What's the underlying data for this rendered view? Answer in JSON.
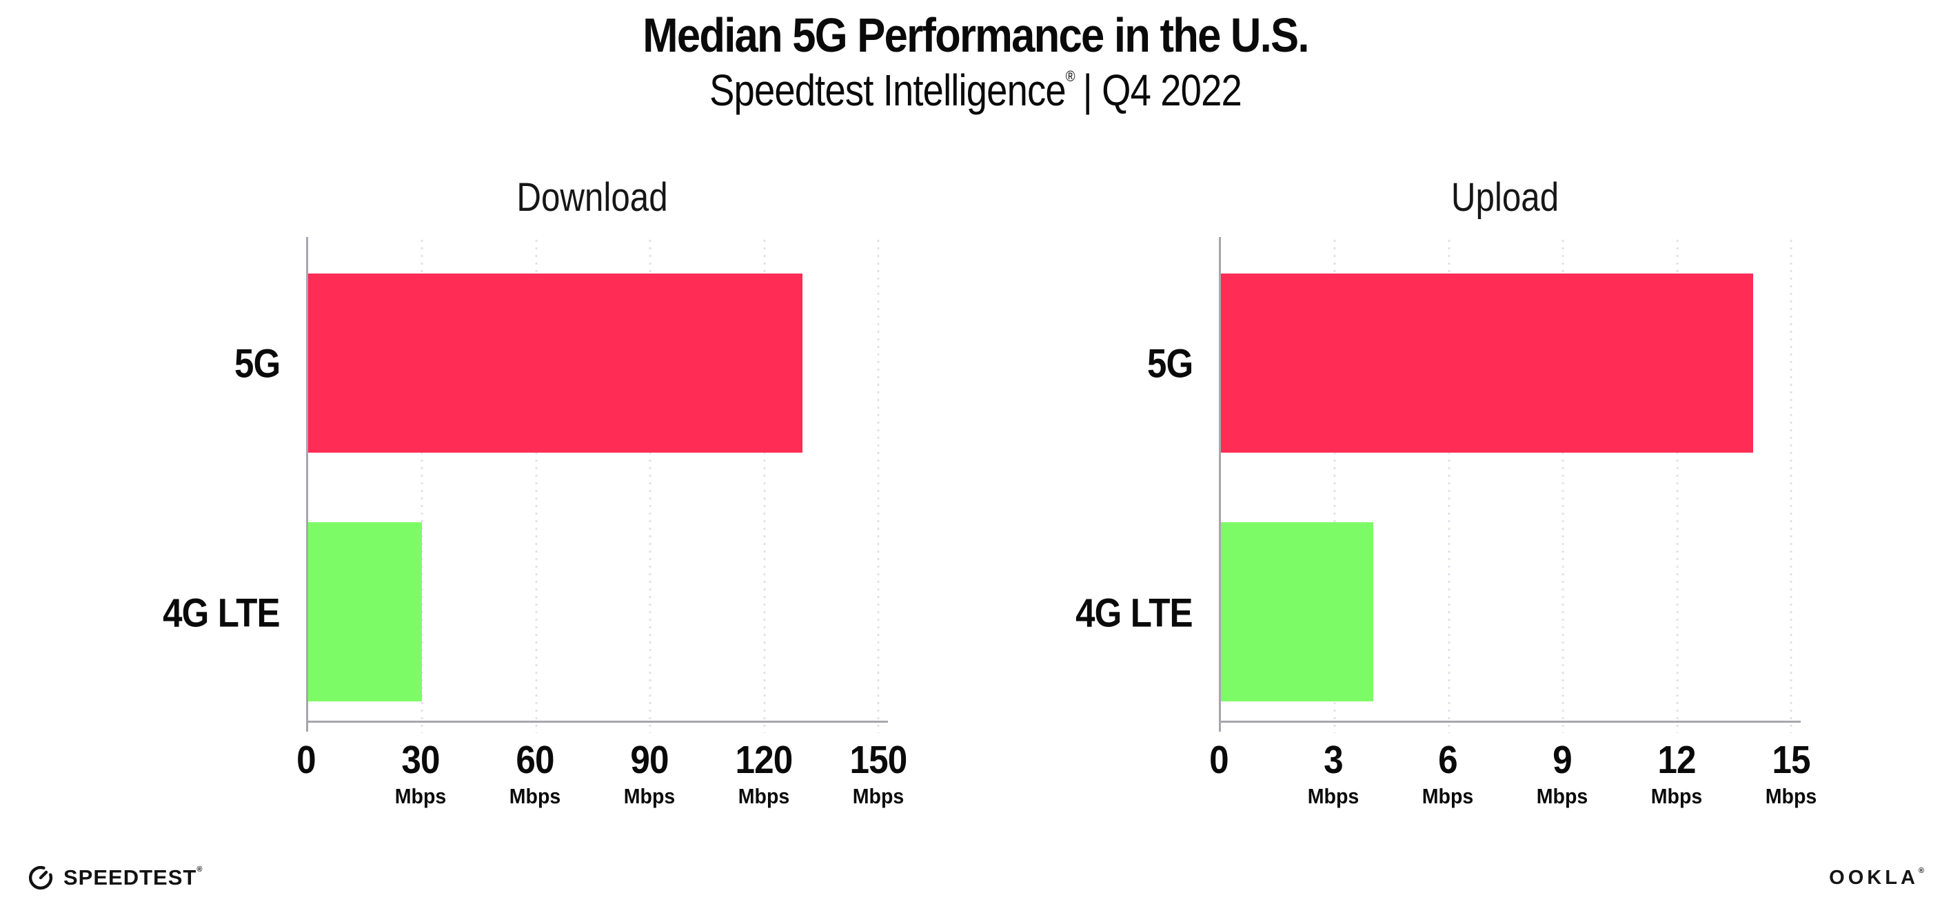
{
  "header": {
    "title": "Median 5G Performance in the U.S.",
    "subtitle_brand": "Speedtest Intelligence",
    "subtitle_reg": "®",
    "subtitle_rest": "| Q4 2022"
  },
  "colors": {
    "bar_5g": "#FF2D55",
    "bar_4g": "#7DFB66",
    "axis": "#a6a6ae",
    "grid": "#dfe1ed",
    "ink": "#0a0a0a",
    "chart_title_ink": "#161616"
  },
  "chart_data": [
    {
      "type": "bar",
      "orientation": "horizontal",
      "title": "Download",
      "categories": [
        "5G",
        "4G LTE"
      ],
      "values": [
        130,
        30
      ],
      "unit": "Mbps",
      "xlabel": "",
      "ylabel": "",
      "xlim": [
        0,
        150
      ],
      "xticks": [
        0,
        30,
        60,
        90,
        120,
        150
      ],
      "bar_colors": [
        "#FF2D55",
        "#7DFB66"
      ],
      "grid": "dotted-vertical",
      "legend": "none"
    },
    {
      "type": "bar",
      "orientation": "horizontal",
      "title": "Upload",
      "categories": [
        "5G",
        "4G LTE"
      ],
      "values": [
        14,
        4
      ],
      "unit": "Mbps",
      "xlabel": "",
      "ylabel": "",
      "xlim": [
        0,
        15
      ],
      "xticks": [
        0,
        3,
        6,
        9,
        12,
        15
      ],
      "bar_colors": [
        "#FF2D55",
        "#7DFB66"
      ],
      "grid": "dotted-vertical",
      "legend": "none"
    }
  ],
  "footer": {
    "speedtest_label": "SPEEDTEST",
    "speedtest_reg": "®",
    "ookla_label": "OOKLA",
    "ookla_reg": "®"
  }
}
